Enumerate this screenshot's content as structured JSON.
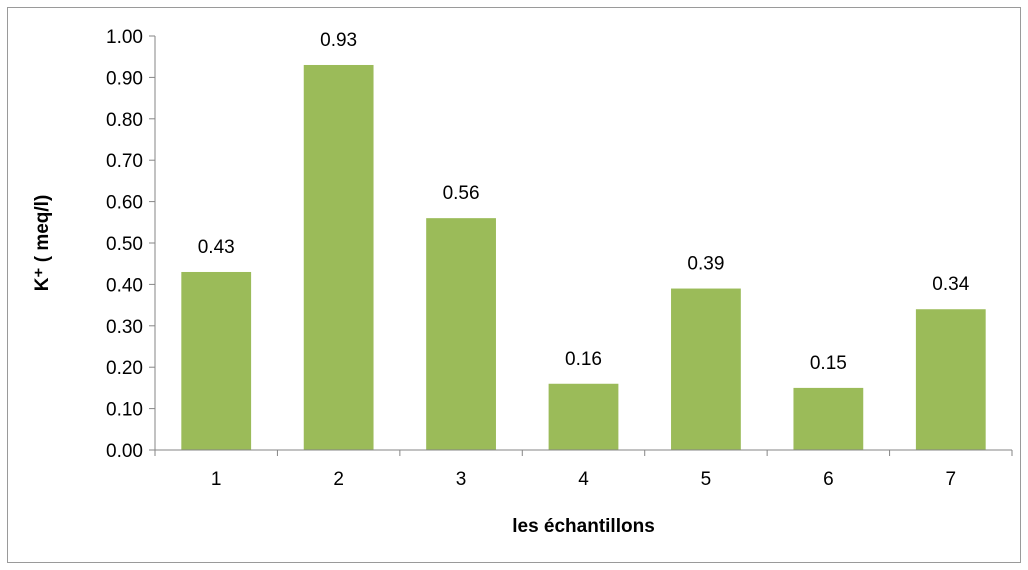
{
  "chart_data": {
    "type": "bar",
    "categories": [
      "1",
      "2",
      "3",
      "4",
      "5",
      "6",
      "7"
    ],
    "values": [
      0.43,
      0.93,
      0.56,
      0.16,
      0.39,
      0.15,
      0.34
    ],
    "data_labels": [
      "0.43",
      "0.93",
      "0.56",
      "0.16",
      "0.39",
      "0.15",
      "0.34"
    ],
    "title": "",
    "xlabel": "les échantillons",
    "ylabel": "K⁺ ( meq/l)",
    "ylim": [
      0,
      1.0
    ],
    "yticks": [
      "0.00",
      "0.10",
      "0.20",
      "0.30",
      "0.40",
      "0.50",
      "0.60",
      "0.70",
      "0.80",
      "0.90",
      "1.00"
    ],
    "grid": false,
    "legend": "none",
    "colors": {
      "bar": "#9bbb59",
      "axis": "#868686",
      "frame": "#9a9a9a"
    }
  }
}
